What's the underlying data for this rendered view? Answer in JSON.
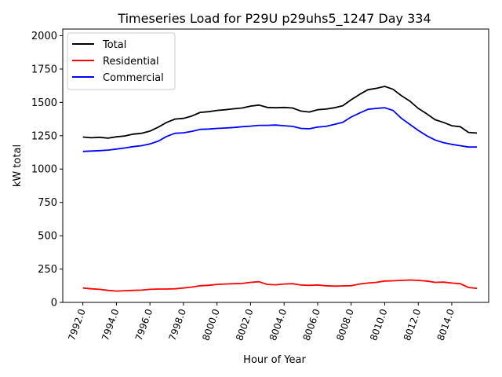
{
  "chart_data": {
    "type": "line",
    "title": "Timeseries Load for P29U p29uhs5_1247  Day 334",
    "xlabel": "Hour of Year",
    "ylabel": "kW total",
    "xlim": [
      7990.8,
      8016.2
    ],
    "ylim": [
      0,
      2050
    ],
    "xticks": [
      7992,
      7994,
      7996,
      7998,
      8000,
      8002,
      8004,
      8006,
      8008,
      8010,
      8012,
      8014
    ],
    "xtick_labels": [
      "7992.0",
      "7994.0",
      "7996.0",
      "7998.0",
      "8000.0",
      "8002.0",
      "8004.0",
      "8006.0",
      "8008.0",
      "8010.0",
      "8012.0",
      "8014.0"
    ],
    "yticks": [
      0,
      250,
      500,
      750,
      1000,
      1250,
      1500,
      1750,
      2000
    ],
    "ytick_labels": [
      "0",
      "250",
      "500",
      "750",
      "1000",
      "1250",
      "1500",
      "1750",
      "2000"
    ],
    "legend_position": "top-left",
    "grid": false,
    "series": [
      {
        "name": "Total",
        "color": "#000000",
        "x": [
          7992,
          7992.5,
          7993,
          7993.5,
          7994,
          7994.5,
          7995,
          7995.5,
          7996,
          7996.5,
          7997,
          7997.5,
          7998,
          7998.5,
          7999,
          7999.5,
          8000,
          8000.5,
          8001,
          8001.5,
          8002,
          8002.5,
          8003,
          8003.5,
          8004,
          8004.5,
          8005,
          8005.5,
          8006,
          8006.5,
          8007,
          8007.5,
          8008,
          8008.5,
          8009,
          8009.5,
          8010,
          8010.5,
          8011,
          8011.5,
          8012,
          8012.5,
          8013,
          8013.5,
          8014,
          8014.5,
          8015,
          8015.5
        ],
        "values": [
          1240,
          1235,
          1238,
          1232,
          1242,
          1248,
          1262,
          1268,
          1285,
          1315,
          1350,
          1375,
          1380,
          1398,
          1425,
          1430,
          1440,
          1445,
          1452,
          1458,
          1472,
          1480,
          1462,
          1460,
          1462,
          1458,
          1435,
          1428,
          1445,
          1450,
          1460,
          1475,
          1520,
          1560,
          1595,
          1605,
          1620,
          1598,
          1550,
          1510,
          1455,
          1415,
          1370,
          1350,
          1325,
          1318,
          1275,
          1270
        ]
      },
      {
        "name": "Residential",
        "color": "#ff0000",
        "x": [
          7992,
          7992.5,
          7993,
          7993.5,
          7994,
          7994.5,
          7995,
          7995.5,
          7996,
          7996.5,
          7997,
          7997.5,
          7998,
          7998.5,
          7999,
          7999.5,
          8000,
          8000.5,
          8001,
          8001.5,
          8002,
          8002.5,
          8003,
          8003.5,
          8004,
          8004.5,
          8005,
          8005.5,
          8006,
          8006.5,
          8007,
          8007.5,
          8008,
          8008.5,
          8009,
          8009.5,
          8010,
          8010.5,
          8011,
          8011.5,
          8012,
          8012.5,
          8013,
          8013.5,
          8014,
          8014.5,
          8015,
          8015.5
        ],
        "values": [
          108,
          102,
          98,
          90,
          85,
          88,
          90,
          92,
          98,
          100,
          100,
          102,
          108,
          115,
          125,
          128,
          135,
          138,
          140,
          142,
          150,
          155,
          135,
          132,
          138,
          140,
          130,
          128,
          130,
          125,
          122,
          124,
          125,
          138,
          145,
          150,
          160,
          162,
          165,
          168,
          165,
          160,
          150,
          152,
          145,
          140,
          112,
          105
        ]
      },
      {
        "name": "Commercial",
        "color": "#0000ff",
        "x": [
          7992,
          7992.5,
          7993,
          7993.5,
          7994,
          7994.5,
          7995,
          7995.5,
          7996,
          7996.5,
          7997,
          7997.5,
          7998,
          7998.5,
          7999,
          7999.5,
          8000,
          8000.5,
          8001,
          8001.5,
          8002,
          8002.5,
          8003,
          8003.5,
          8004,
          8004.5,
          8005,
          8005.5,
          8006,
          8006.5,
          8007,
          8007.5,
          8008,
          8008.5,
          8009,
          8009.5,
          8010,
          8010.5,
          8011,
          8011.5,
          8012,
          8012.5,
          8013,
          8013.5,
          8014,
          8014.5,
          8015,
          8015.5
        ],
        "values": [
          1132,
          1135,
          1138,
          1142,
          1150,
          1158,
          1168,
          1175,
          1188,
          1210,
          1245,
          1268,
          1272,
          1283,
          1298,
          1300,
          1305,
          1308,
          1312,
          1318,
          1322,
          1328,
          1328,
          1330,
          1325,
          1320,
          1305,
          1302,
          1315,
          1320,
          1335,
          1350,
          1390,
          1420,
          1448,
          1455,
          1460,
          1440,
          1380,
          1335,
          1290,
          1250,
          1218,
          1198,
          1185,
          1175,
          1165,
          1165
        ]
      }
    ]
  }
}
